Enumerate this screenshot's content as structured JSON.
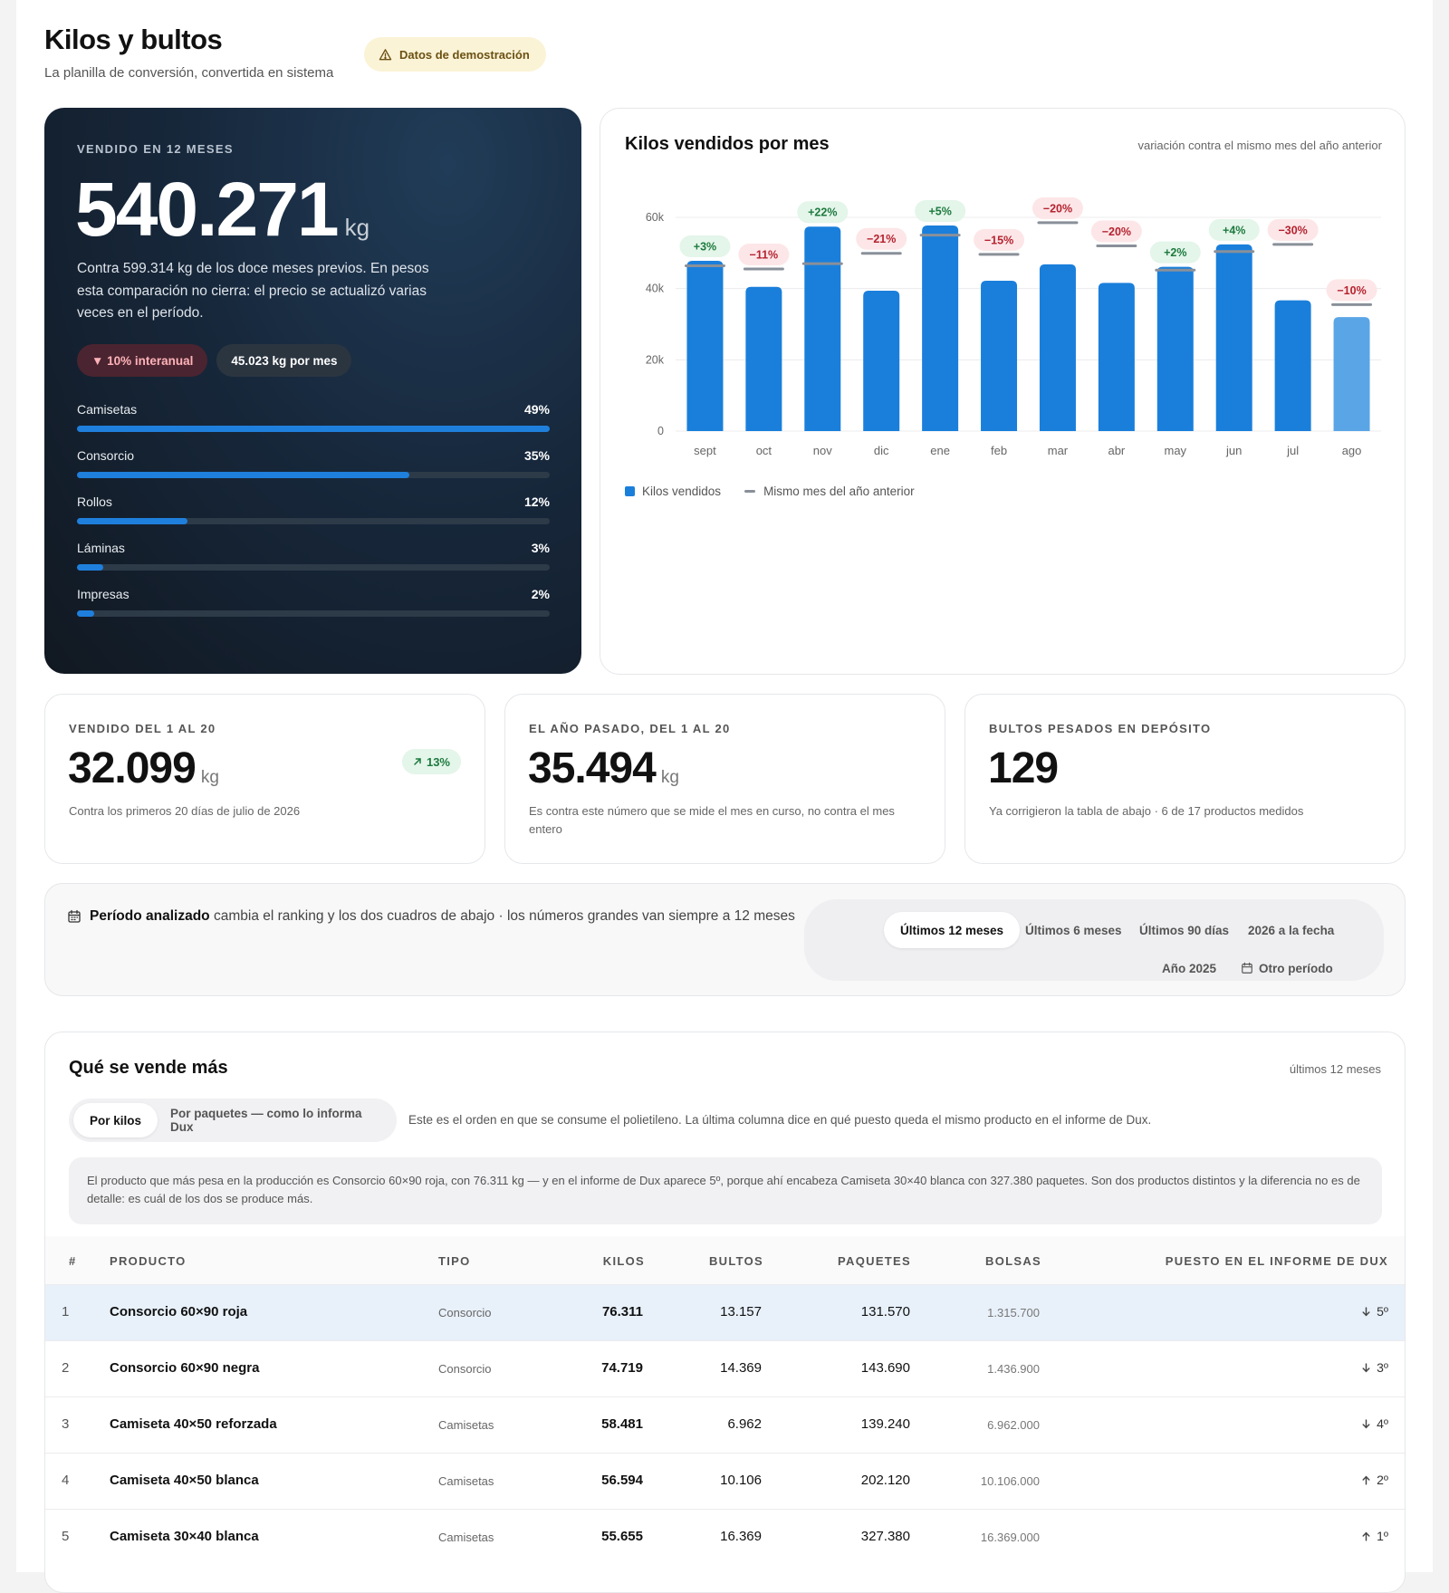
{
  "header": {
    "title": "Kilos y bultos",
    "subtitle": "La planilla de conversión, convertida en sistema",
    "demo_badge": "Datos de demostración"
  },
  "summary": {
    "eyebrow": "VENDIDO EN 12 MESES",
    "value": "540.271",
    "unit": "kg",
    "description": "Contra 599.314 kg de los doce meses previos. En pesos esta comparación no cierra: el precio se actualizó varias veces en el período.",
    "pill_yoy": "▼ 10% interanual",
    "pill_avg": "45.023 kg por mes",
    "categories": [
      {
        "label": "Camisetas",
        "pct": "49%",
        "share": 1.0
      },
      {
        "label": "Consorcio",
        "pct": "35%",
        "share": 0.704
      },
      {
        "label": "Rollos",
        "pct": "12%",
        "share": 0.234
      },
      {
        "label": "Láminas",
        "pct": "3%",
        "share": 0.055
      },
      {
        "label": "Impresas",
        "pct": "2%",
        "share": 0.037
      }
    ]
  },
  "monthly_chart": {
    "title": "Kilos vendidos por mes",
    "note": "variación contra el mismo mes del año anterior",
    "legend_current": "Kilos vendidos",
    "legend_previous": "Mismo mes del año anterior",
    "colors": {
      "bar": "#1a7fdb",
      "bar_last": "#5aa5e6",
      "prev": "#8a9099",
      "up_bg": "#e4f5ea",
      "up_fg": "#1d7a3e",
      "down_bg": "#fde6e8",
      "down_fg": "#b4232f"
    }
  },
  "chart_data": {
    "type": "bar",
    "title": "Kilos vendidos por mes",
    "subtitle": "variación contra el mismo mes del año anterior",
    "categories": [
      "sept",
      "oct",
      "nov",
      "dic",
      "ene",
      "feb",
      "mar",
      "abr",
      "may",
      "jun",
      "jul",
      "ago"
    ],
    "y_ticks": [
      "0",
      "20k",
      "40k",
      "60k"
    ],
    "ylim": [
      0,
      60000
    ],
    "grid": true,
    "legend": "bottom-left",
    "series": [
      {
        "name": "Kilos vendidos",
        "values": [
          47800,
          40500,
          57400,
          39400,
          57700,
          42200,
          46800,
          41600,
          46100,
          52400,
          36700,
          32000
        ]
      },
      {
        "name": "Mismo mes del año anterior",
        "values": [
          46400,
          45500,
          47000,
          49900,
          55000,
          49600,
          58500,
          52000,
          45200,
          50400,
          52400,
          35500
        ]
      }
    ],
    "change_labels": [
      "+3%",
      "−11%",
      "+22%",
      "−21%",
      "+5%",
      "−15%",
      "−20%",
      "−20%",
      "+2%",
      "+4%",
      "−30%",
      "−10%"
    ]
  },
  "stats": [
    {
      "eyebrow": "VENDIDO DEL 1 AL 20",
      "value": "32.099",
      "unit": "kg",
      "desc": "Contra los primeros 20 días de julio de 2026",
      "chip": "13%"
    },
    {
      "eyebrow": "EL AÑO PASADO, DEL 1 AL 20",
      "value": "35.494",
      "unit": "kg",
      "desc": "Es contra este número que se mide el mes en curso, no contra el mes entero"
    },
    {
      "eyebrow": "BULTOS PESADOS EN DEPÓSITO",
      "value": "129",
      "desc": "Ya corrigieron la tabla de abajo · 6 de 17 productos medidos"
    }
  ],
  "period": {
    "title": "Período analizado",
    "note": "cambia el ranking y los dos cuadros de abajo · los números grandes van siempre a 12 meses",
    "options": [
      "Últimos 12 meses",
      "Últimos 6 meses",
      "Últimos 90 días",
      "2026 a la fecha",
      "Año 2025",
      "Otro período"
    ]
  },
  "ranking": {
    "title": "Qué se vende más",
    "note": "últimos 12 meses",
    "toggle": [
      "Por kilos",
      "Por paquetes — como lo informa Dux"
    ],
    "explanation": "Este es el orden en que se consume el polietileno. La última columna dice en qué puesto queda el mismo producto en el informe de Dux.",
    "callout": "El producto que más pesa en la producción es Consorcio 60×90 roja, con 76.311 kg — y en el informe de Dux aparece 5º, porque ahí encabeza Camiseta 30×40 blanca con 327.380 paquetes. Son dos productos distintos y la diferencia no es de detalle: es cuál de los dos se produce más.",
    "columns": [
      "#",
      "PRODUCTO",
      "TIPO",
      "KILOS",
      "BULTOS",
      "PAQUETES",
      "BOLSAS",
      "PUESTO EN EL INFORME DE DUX"
    ],
    "rows": [
      {
        "idx": "1",
        "product": "Consorcio 60×90 roja",
        "type": "Consorcio",
        "kilos": "76.311",
        "bultos": "13.157",
        "paquetes": "131.570",
        "bolsas": "1.315.700",
        "puesto": "5º",
        "dir": "down"
      },
      {
        "idx": "2",
        "product": "Consorcio 60×90 negra",
        "type": "Consorcio",
        "kilos": "74.719",
        "bultos": "14.369",
        "paquetes": "143.690",
        "bolsas": "1.436.900",
        "puesto": "3º",
        "dir": "down"
      },
      {
        "idx": "3",
        "product": "Camiseta 40×50 reforzada",
        "type": "Camisetas",
        "kilos": "58.481",
        "bultos": "6.962",
        "paquetes": "139.240",
        "bolsas": "6.962.000",
        "puesto": "4º",
        "dir": "down"
      },
      {
        "idx": "4",
        "product": "Camiseta 40×50 blanca",
        "type": "Camisetas",
        "kilos": "56.594",
        "bultos": "10.106",
        "paquetes": "202.120",
        "bolsas": "10.106.000",
        "puesto": "2º",
        "dir": "up"
      },
      {
        "idx": "5",
        "product": "Camiseta 30×40 blanca",
        "type": "Camisetas",
        "kilos": "55.655",
        "bultos": "16.369",
        "paquetes": "327.380",
        "bolsas": "16.369.000",
        "puesto": "1º",
        "dir": "up"
      }
    ]
  }
}
